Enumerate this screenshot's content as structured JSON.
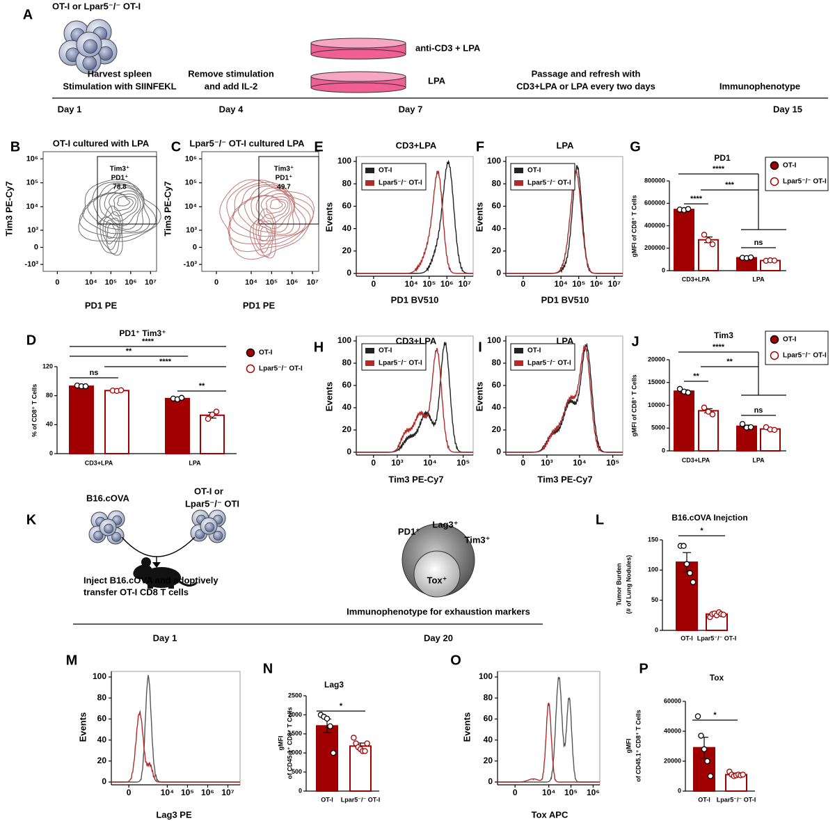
{
  "panel_a": {
    "letter": "A",
    "cells_label": "OT-I or Lpar5⁻/⁻ OT-I",
    "step1": [
      "Harvest spleen",
      "Stimulation with SIINFEKL"
    ],
    "step2": [
      "Remove stimulation",
      "and add IL-2"
    ],
    "dish_top": "anti-CD3 + LPA",
    "dish_bottom": "LPA",
    "step3": [
      "Passage and refresh with",
      "CD3+LPA or LPA every two days"
    ],
    "step4": "Immunophenotype",
    "days": [
      "Day 1",
      "Day 4",
      "Day 7",
      "Day 15"
    ]
  },
  "panel_k": {
    "letter": "K",
    "tumor": "B16.cOVA",
    "tcells": [
      "OT-I or",
      "Lpar5⁻/⁻ OTI"
    ],
    "inject": [
      "Inject B16.cOVA and adoptively",
      "transfer OT-I CD8 T cells"
    ],
    "markers": [
      "PD1⁺",
      "Lag3⁺",
      "Tim3⁺"
    ],
    "tox": "Tox⁺",
    "phenotype": "Immunophenotype for exhaustion markers",
    "days": [
      "Day 1",
      "Day 20"
    ]
  },
  "chart_data": [
    {
      "type": "contour",
      "letter": "B",
      "title": "OT-I cultured with LPA",
      "xlabel": "PD1 PE",
      "ylabel": "Tim3 PE-Cy7",
      "color": "#707070",
      "xlim": [
        -1000,
        20000000
      ],
      "xticks": [
        0,
        {
          "value": 10000,
          "label": "10⁴"
        },
        {
          "value": 100000,
          "label": "10⁵"
        },
        {
          "value": 1000000,
          "label": "10⁶"
        },
        {
          "value": 10000000,
          "label": "10⁷"
        }
      ],
      "ylim": [
        -2000,
        2000000
      ],
      "yticks": [
        {
          "value": -1000,
          "label": "-10³"
        },
        0,
        {
          "value": 1000,
          "label": "10³"
        },
        {
          "value": 10000,
          "label": "10⁴"
        },
        {
          "value": 100000,
          "label": "10⁵"
        },
        {
          "value": 1000000,
          "label": "10⁶"
        }
      ],
      "gate": {
        "lines": [
          "Tim3⁺",
          "PD1⁺"
        ],
        "value": 78.8
      }
    },
    {
      "type": "contour",
      "letter": "C",
      "title": "Lpar5⁻/⁻ OT-I cultured LPA",
      "xlabel": "PD1 PE",
      "ylabel": "Tim3 PE-Cy7",
      "color": "#c07a78",
      "xlim": [
        -1000,
        20000000
      ],
      "xticks": [
        0,
        {
          "value": 10000,
          "label": "10⁴"
        },
        {
          "value": 100000,
          "label": "10⁵"
        },
        {
          "value": 1000000,
          "label": "10⁶"
        },
        {
          "value": 10000000,
          "label": "10⁷"
        }
      ],
      "ylim": [
        -2000,
        2000000
      ],
      "yticks": [
        {
          "value": -1000,
          "label": "-10³"
        },
        0,
        {
          "value": 1000,
          "label": "10³"
        },
        {
          "value": 10000,
          "label": "10⁴"
        },
        {
          "value": 100000,
          "label": "10⁵"
        },
        {
          "value": 1000000,
          "label": "10⁶"
        }
      ],
      "gate": {
        "lines": [
          "Tim3⁺",
          "PD1⁺"
        ],
        "value": 49.7
      }
    },
    {
      "type": "histogram",
      "letter": "E",
      "title": "CD3+LPA",
      "xlabel": "PD1 BV510",
      "ylabel": "Events",
      "xlim": [
        -700,
        30000000
      ],
      "xticks": [
        0,
        {
          "value": 10000,
          "label": "10⁴"
        },
        {
          "value": 100000,
          "label": "10⁵"
        },
        {
          "value": 1000000,
          "label": "10⁶"
        },
        {
          "value": 10000000,
          "label": "10⁷"
        }
      ],
      "ylim": [
        0,
        100
      ],
      "yticks": [
        0,
        20,
        40,
        60,
        80,
        100
      ],
      "series": [
        {
          "name": "OT-I",
          "color": "#222222"
        },
        {
          "name": "Lpar5⁻/⁻ OT-I",
          "color": "#b22a2a"
        }
      ]
    },
    {
      "type": "histogram",
      "letter": "F",
      "title": "LPA",
      "xlabel": "PD1 BV510",
      "ylabel": "Events",
      "xlim": [
        -700,
        30000000
      ],
      "xticks": [
        0,
        {
          "value": 10000,
          "label": "10⁴"
        },
        {
          "value": 100000,
          "label": "10⁵"
        },
        {
          "value": 1000000,
          "label": "10⁶"
        },
        {
          "value": 10000000,
          "label": "10⁷"
        }
      ],
      "ylim": [
        0,
        100
      ],
      "yticks": [
        0,
        20,
        40,
        60,
        80,
        100
      ],
      "series": [
        {
          "name": "OT-I",
          "color": "#222222"
        },
        {
          "name": "Lpar5⁻/⁻ OT-I",
          "color": "#b22a2a"
        }
      ]
    },
    {
      "type": "bar",
      "letter": "G",
      "title": "PD1",
      "ylabel": "gMFI of CD8⁺ T Cells",
      "categories": [
        "CD3+LPA",
        "LPA"
      ],
      "ylim": [
        0,
        800000
      ],
      "yticks": [
        0,
        200000,
        400000,
        600000,
        800000
      ],
      "series": [
        {
          "name": "OT-I",
          "color": "#a00000",
          "filled": true,
          "values": [
            545000,
            115000
          ],
          "errors": [
            5000,
            3000
          ],
          "points": [
            [
              545000,
              540000,
              550000
            ],
            [
              115000,
              112000,
              118000
            ]
          ]
        },
        {
          "name": "Lpar5⁻/⁻ OT-I",
          "color": "#a00000",
          "filled": false,
          "values": [
            275000,
            90000
          ],
          "errors": [
            25000,
            2000
          ],
          "points": [
            [
              320000,
              270000,
              235000
            ],
            [
              88000,
              92000,
              90000
            ]
          ]
        }
      ],
      "significance": [
        "****",
        "***",
        "****",
        "ns"
      ]
    },
    {
      "type": "bar",
      "letter": "D",
      "title": "PD1⁺ Tim3⁺",
      "ylabel": "% of CD8⁺ T Cells",
      "categories": [
        "CD3+LPA",
        "LPA"
      ],
      "ylim": [
        0,
        120
      ],
      "yticks": [
        0,
        40,
        80,
        120
      ],
      "series": [
        {
          "name": "OT-I",
          "color": "#a00000",
          "filled": true,
          "values": [
            93,
            76
          ],
          "errors": [
            1,
            1
          ],
          "points": [
            [
              94,
              93,
              93
            ],
            [
              76,
              75,
              77
            ]
          ]
        },
        {
          "name": "Lpar5⁻/⁻ OT-I",
          "color": "#a00000",
          "filled": false,
          "values": [
            87,
            53
          ],
          "errors": [
            0.5,
            4
          ],
          "points": [
            [
              87,
              86.5,
              87.5
            ],
            [
              48,
              54,
              58
            ]
          ]
        }
      ],
      "significance": [
        "****",
        "**",
        "****",
        "ns",
        "**"
      ]
    },
    {
      "type": "histogram",
      "letter": "H",
      "title": "CD3+LPA",
      "xlabel": "Tim3 PE-Cy7",
      "ylabel": "Events",
      "xlim": [
        -600,
        200000
      ],
      "xticks": [
        0,
        {
          "value": 1000,
          "label": "10³"
        },
        {
          "value": 10000,
          "label": "10⁴"
        },
        {
          "value": 100000,
          "label": "10⁵"
        }
      ],
      "ylim": [
        0,
        100
      ],
      "yticks": [
        0,
        20,
        40,
        60,
        80,
        100
      ],
      "series": [
        {
          "name": "OT-I",
          "color": "#222222"
        },
        {
          "name": "Lpar5⁻/⁻ OT-I",
          "color": "#b22a2a"
        }
      ]
    },
    {
      "type": "histogram",
      "letter": "I",
      "title": "LPA",
      "xlabel": "Tim3 PE-Cy7",
      "ylabel": "Events",
      "xlim": [
        -600,
        200000
      ],
      "xticks": [
        0,
        {
          "value": 1000,
          "label": "10³"
        },
        {
          "value": 10000,
          "label": "10⁴"
        },
        {
          "value": 100000,
          "label": "10⁵"
        }
      ],
      "ylim": [
        0,
        100
      ],
      "yticks": [
        0,
        20,
        40,
        60,
        80,
        100
      ],
      "series": [
        {
          "name": "OT-I",
          "color": "#222222"
        },
        {
          "name": "Lpar5⁻/⁻ OT-I",
          "color": "#b22a2a"
        }
      ]
    },
    {
      "type": "bar",
      "letter": "J",
      "title": "Tim3",
      "ylabel": "gMFI of CD8⁺ T Cells",
      "categories": [
        "CD3+LPA",
        "LPA"
      ],
      "ylim": [
        0,
        20000
      ],
      "yticks": [
        0,
        5000,
        10000,
        15000,
        20000
      ],
      "series": [
        {
          "name": "OT-I",
          "color": "#a00000",
          "filled": true,
          "values": [
            13100,
            5400
          ],
          "errors": [
            300,
            250
          ],
          "points": [
            [
              13600,
              13000,
              12800
            ],
            [
              5900,
              5100,
              5200
            ]
          ]
        },
        {
          "name": "Lpar5⁻/⁻ OT-I",
          "color": "#a00000",
          "filled": false,
          "values": [
            8800,
            4800
          ],
          "errors": [
            450,
            200
          ],
          "points": [
            [
              9500,
              8600,
              8000
            ],
            [
              5200,
              4700,
              4600
            ]
          ]
        }
      ],
      "significance": [
        "****",
        "**",
        "**",
        "ns"
      ]
    },
    {
      "type": "bar",
      "letter": "L",
      "title": "B16.cOVA Inejction",
      "ylabel": [
        "Tumor Burden",
        "(# of Lung Nodules)"
      ],
      "categories": [
        "OT-I",
        "Lpar5⁻/⁻ OT-I"
      ],
      "ylim": [
        0,
        150
      ],
      "yticks": [
        0,
        50,
        100,
        150
      ],
      "color": "#a00000",
      "filled": [
        true,
        false
      ],
      "values": [
        113,
        27
      ],
      "errors": [
        16,
        2.5
      ],
      "points": [
        [
          140,
          140,
          110,
          95,
          80
        ],
        [
          22,
          27,
          28,
          25,
          30,
          27,
          26
        ]
      ],
      "significance": [
        "*"
      ]
    },
    {
      "type": "histogram",
      "letter": "M",
      "xlabel": "Lag3 PE",
      "ylabel": "Events",
      "xlim": [
        -900,
        40000000
      ],
      "xticks": [
        0,
        {
          "value": 10000,
          "label": "10⁴"
        },
        {
          "value": 100000,
          "label": "10⁵"
        },
        {
          "value": 1000000,
          "label": "10⁶"
        },
        {
          "value": 10000000,
          "label": "10⁷"
        }
      ],
      "ylim": [
        0,
        100
      ],
      "yticks": [
        0,
        20,
        40,
        60,
        80,
        100
      ],
      "series": [
        {
          "color": "#555555"
        },
        {
          "color": "#b22a2a"
        }
      ]
    },
    {
      "type": "bar",
      "letter": "N",
      "title": "Lag3",
      "ylabel": [
        "gMFI",
        "of CD45.1⁺ CD8⁺ T Cells"
      ],
      "categories": [
        "OT-I",
        "Lpar5⁻/⁻ OT-I"
      ],
      "ylim": [
        0,
        2500
      ],
      "yticks": [
        0,
        500,
        1000,
        1500,
        2000,
        2500
      ],
      "color": "#a00000",
      "filled": [
        true,
        false
      ],
      "values": [
        1710,
        1180
      ],
      "errors": [
        180,
        80
      ],
      "points": [
        [
          2000,
          1950,
          1900,
          1700,
          1000
        ],
        [
          1400,
          1250,
          1150,
          1100,
          1050,
          1050,
          1250
        ]
      ],
      "significance": [
        "*"
      ]
    },
    {
      "type": "histogram",
      "letter": "O",
      "xlabel": "Tox APC",
      "ylabel": "Events",
      "xlim": [
        -1800,
        2000000
      ],
      "xticks": [
        0,
        {
          "value": 10000,
          "label": "10⁴"
        },
        {
          "value": 100000,
          "label": "10⁵"
        },
        {
          "value": 1000000,
          "label": "10⁶"
        }
      ],
      "ylim": [
        0,
        100
      ],
      "yticks": [
        0,
        20,
        40,
        60,
        80,
        100
      ],
      "series": [
        {
          "color": "#555555"
        },
        {
          "color": "#b22a2a"
        }
      ]
    },
    {
      "type": "bar",
      "letter": "P",
      "title": "Tox",
      "ylabel": [
        "gMFI",
        "of CD45.1⁺ CD8⁺ T Cells"
      ],
      "categories": [
        "OT-I",
        "Lpar5⁻/⁻ OT-I"
      ],
      "ylim": [
        0,
        60000
      ],
      "yticks": [
        0,
        20000,
        40000,
        60000
      ],
      "color": "#a00000",
      "filled": [
        true,
        false
      ],
      "values": [
        29000,
        11000
      ],
      "errors": [
        7000,
        1000
      ],
      "points": [
        [
          50000,
          37000,
          28000,
          20000,
          10000
        ],
        [
          13000,
          11000,
          10000,
          10500,
          11000,
          10500,
          11000
        ]
      ],
      "significance": [
        "*"
      ]
    }
  ]
}
